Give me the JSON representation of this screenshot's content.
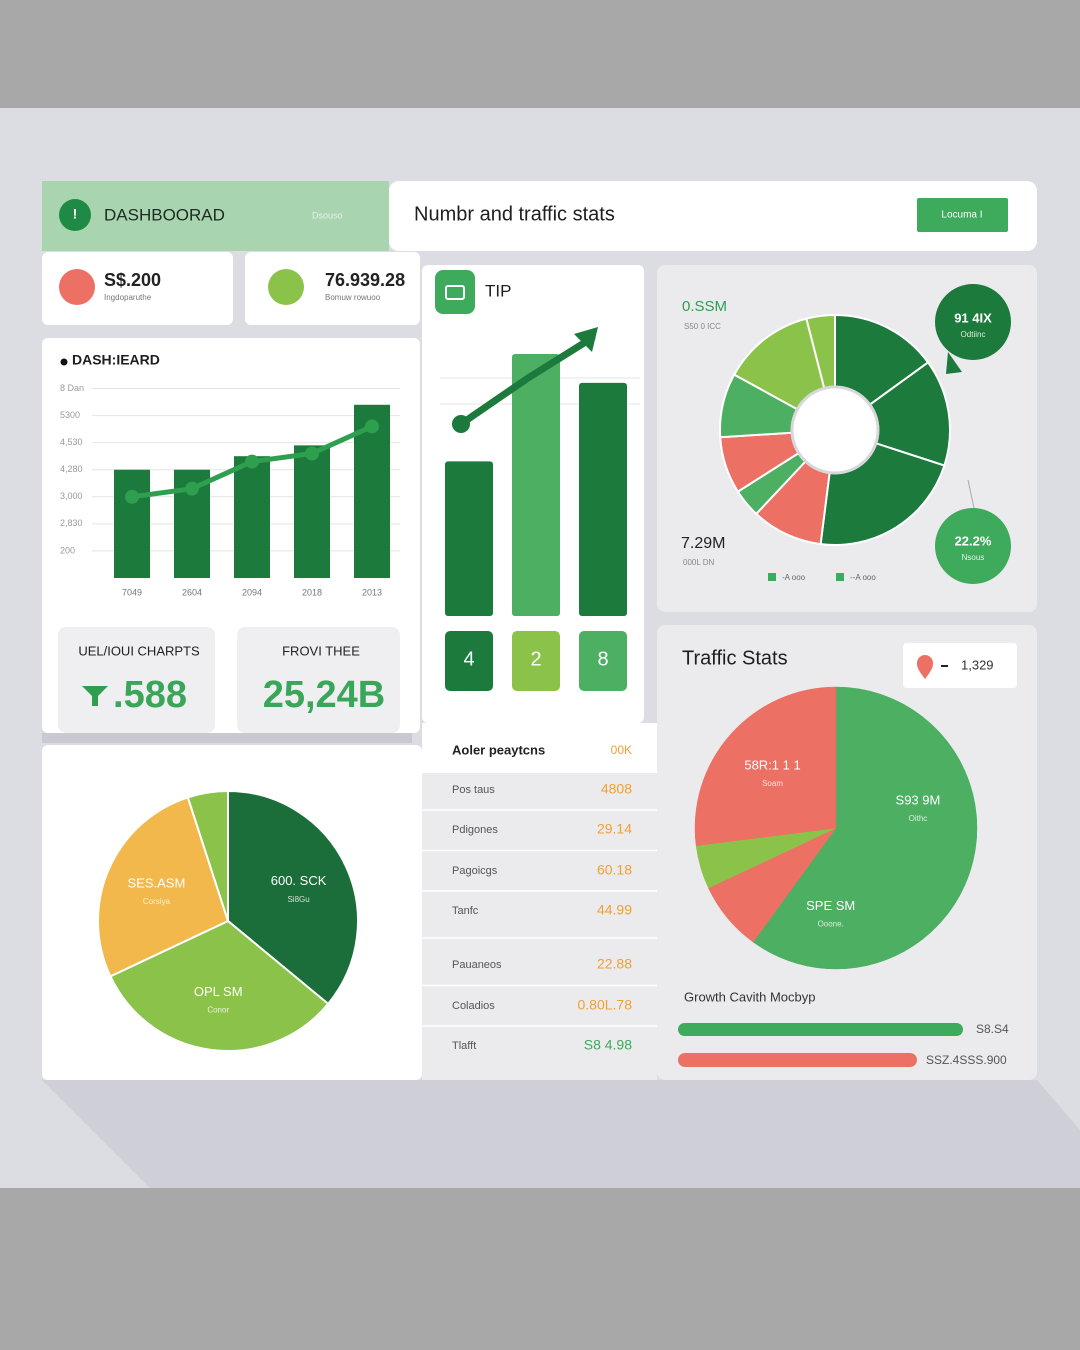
{
  "header": {
    "title": "DASHBOORAD",
    "subtitle": "Dsouso",
    "heading": "Numbr and traffic stats",
    "button": "Locuma I"
  },
  "stats": [
    {
      "value": "S$.200",
      "label": "Ingdoparuthe"
    },
    {
      "value": "76.939.28",
      "label": "Bomuw rowuoo"
    }
  ],
  "bar_chart": {
    "type": "bar",
    "title": "DASH:IEARD",
    "categories": [
      "7049",
      "2604",
      "2094",
      "2018",
      "2013"
    ],
    "values": [
      4.0,
      4.0,
      4.5,
      4.9,
      6.4
    ],
    "line_values": [
      3.0,
      3.3,
      4.3,
      4.6,
      5.6
    ],
    "color": "#1b7a3c",
    "line_color": "#2e9e4f",
    "ylim": [
      0,
      7.5
    ],
    "yticks": [
      {
        "value": 7,
        "label": "8 Dan"
      },
      {
        "value": 6,
        "label": "5300"
      },
      {
        "value": 5,
        "label": "4,530"
      },
      {
        "value": 4,
        "label": "4,280"
      },
      {
        "value": 3,
        "label": "3,000"
      },
      {
        "value": 2,
        "label": "2,830"
      },
      {
        "value": 1,
        "label": "200"
      }
    ],
    "grid": true
  },
  "kpis": [
    {
      "label": "UEL/IOUI CHARPTS",
      "value": ".588"
    },
    {
      "label": "FROVI THEE",
      "value": "25,24B"
    }
  ],
  "tip": {
    "type": "bar",
    "title": "TIP",
    "values": [
      0.59,
      1,
      0.89
    ],
    "colors": [
      "#1b7a3c",
      "#4caf62",
      "#1b7a3c"
    ],
    "ylim": [
      0,
      1
    ],
    "labels": [
      "4",
      "2",
      "8"
    ],
    "label_colors": [
      "#1b7a3c",
      "#8bc34a",
      "#4caf62"
    ]
  },
  "donut": {
    "type": "pie",
    "title": "0.SSM",
    "subtitle": "S50 0 ICC",
    "values": [
      15,
      15,
      22,
      10,
      4,
      8,
      9,
      13,
      4
    ],
    "colors": [
      "#1b7a3c",
      "#1b7a3c",
      "#1b7a3c",
      "#ec7063",
      "#4caf62",
      "#ec7063",
      "#4caf62",
      "#8bc34a",
      "#8bc34a"
    ],
    "callouts": [
      {
        "value": "91 4IX",
        "label": "Odtiinc"
      },
      {
        "value": "22.2%",
        "label": "Nsous"
      }
    ],
    "total": "7.29M",
    "total_label": "000L DN",
    "legend": [
      "-A ooo",
      "--A ooo"
    ]
  },
  "pie_left": {
    "type": "pie",
    "values": [
      36,
      32,
      27,
      5
    ],
    "colors": [
      "#1b6e3a",
      "#8bc34a",
      "#f2b84b",
      "#8bc34a"
    ],
    "labels": [
      [
        "600. SCK",
        "Si8Gu"
      ],
      [
        "OPL SM",
        "Conor"
      ],
      [
        "SES.ASM",
        "Corsiya"
      ],
      null
    ]
  },
  "table": {
    "header": [
      "Aoler peaytcns",
      "00K"
    ],
    "rows": [
      [
        "Pos taus",
        "4808"
      ],
      [
        "Pdigones",
        "29.14"
      ],
      [
        "Pagoicgs",
        "60.18"
      ],
      [
        "Tanfc",
        "44.99"
      ],
      [
        "Pauaneos",
        "22.88"
      ],
      [
        "Coladios",
        "0.80L.78"
      ],
      [
        "Tlafft",
        "S8 4.98"
      ]
    ]
  },
  "traffic": {
    "type": "pie",
    "title": "Traffic Stats",
    "chip": "1,329",
    "values": [
      42,
      18,
      8,
      5,
      27
    ],
    "colors": [
      "#4caf62",
      "#4caf62",
      "#ec7063",
      "#8bc34a",
      "#ec7063"
    ],
    "labels": [
      [
        "S93 9M",
        "Oithc"
      ],
      [
        "SPE SM",
        "Ooone."
      ],
      null,
      null,
      [
        "58R:1 1 1",
        "Soam"
      ]
    ],
    "growth_title": "Growth Cavith Mocbyp",
    "growth_labels": [
      "S8.S4",
      "SSZ.4SSS.900"
    ]
  }
}
